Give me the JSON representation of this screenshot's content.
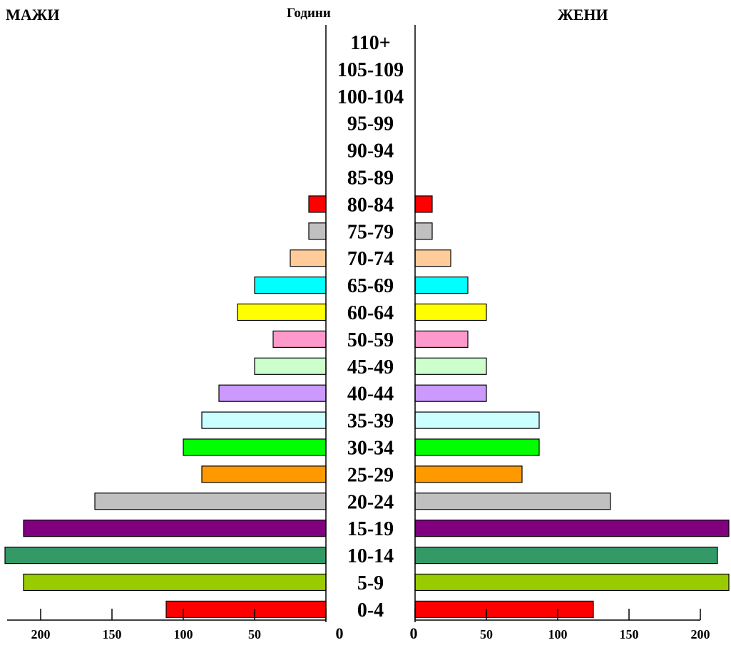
{
  "headers": {
    "left": "МАЖИ",
    "center": "Години",
    "right": "ЖЕНИ"
  },
  "chart_data": {
    "type": "bar",
    "orientation": "population-pyramid",
    "categories": [
      "110+",
      "105-109",
      "100-104",
      "95-99",
      "90-94",
      "85-89",
      "80-84",
      "75-79",
      "70-74",
      "65-69",
      "60-64",
      "50-59",
      "45-49",
      "40-44",
      "35-39",
      "30-34",
      "25-29",
      "20-24",
      "15-19",
      "10-14",
      "5-9",
      "0-4"
    ],
    "series": [
      {
        "name": "МАЖИ",
        "values": [
          0,
          0,
          0,
          0,
          0,
          0,
          12,
          12,
          25,
          50,
          62,
          37,
          50,
          75,
          87,
          100,
          87,
          162,
          212,
          225,
          212,
          112
        ]
      },
      {
        "name": "ЖЕНИ",
        "values": [
          0,
          0,
          0,
          0,
          0,
          0,
          12,
          12,
          25,
          37,
          50,
          37,
          50,
          50,
          87,
          87,
          75,
          137,
          220,
          212,
          220,
          125
        ]
      }
    ],
    "colors": [
      "#ffffff",
      "#ffffff",
      "#ffffff",
      "#ffffff",
      "#ffffff",
      "#ffffff",
      "#ff0000",
      "#c0c0c0",
      "#ffcc99",
      "#00ffff",
      "#ffff00",
      "#ff99cc",
      "#ccffcc",
      "#cc99ff",
      "#ccffff",
      "#00ff00",
      "#ff9900",
      "#c0c0c0",
      "#800080",
      "#339966",
      "#99cc00",
      "#ff0000"
    ],
    "x_axis_left": {
      "ticks": [
        200,
        150,
        100,
        50,
        0
      ],
      "labels": [
        "200",
        "150",
        "100",
        "50",
        "0"
      ]
    },
    "x_axis_right": {
      "ticks": [
        0,
        50,
        100,
        150,
        200
      ],
      "labels": [
        "0",
        "50",
        "100",
        "150",
        "200"
      ]
    },
    "grid": false
  }
}
